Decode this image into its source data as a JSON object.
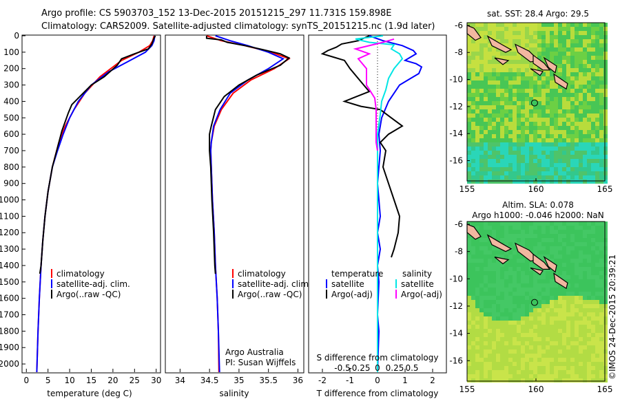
{
  "header": {
    "title_line1": "Argo profile: CS 5903703_152 13-Dec-2015 20151215_297 11.731S 159.898E",
    "title_line2": "Climatology: CARS2009. Satellite-adjusted climatology: synTS_20151215.nc (1.9d later)"
  },
  "colors": {
    "climatology": "#ff0000",
    "satellite": "#0000ff",
    "argo": "#000000",
    "sat_salinity": "#00e5e5",
    "argo_salinity": "#ff00ff"
  },
  "chart_data": [
    {
      "type": "line",
      "id": "temperature",
      "xlabel": "temperature (deg C)",
      "xlim": [
        -1,
        31
      ],
      "xticks": [
        0,
        5,
        10,
        15,
        20,
        25,
        30
      ],
      "ylim": [
        2050,
        0
      ],
      "yticks": [
        0,
        100,
        200,
        300,
        400,
        500,
        600,
        700,
        800,
        900,
        1000,
        1100,
        1200,
        1300,
        1400,
        1500,
        1600,
        1700,
        1800,
        1900,
        2000
      ],
      "series": [
        {
          "name": "climatology",
          "color": "#ff0000",
          "points": [
            [
              29.5,
              0
            ],
            [
              29.2,
              30
            ],
            [
              28.5,
              60
            ],
            [
              26,
              100
            ],
            [
              22,
              150
            ],
            [
              17,
              250
            ],
            [
              13.5,
              350
            ],
            [
              11,
              450
            ],
            [
              9,
              550
            ],
            [
              7.5,
              650
            ],
            [
              6,
              800
            ],
            [
              5,
              950
            ],
            [
              4.3,
              1100
            ],
            [
              3.8,
              1250
            ],
            [
              3.4,
              1400
            ],
            [
              3.0,
              1600
            ],
            [
              2.7,
              1800
            ],
            [
              2.4,
              2050
            ]
          ]
        },
        {
          "name": "satellite-adj. clim.",
          "color": "#0000ff",
          "points": [
            [
              29.7,
              0
            ],
            [
              29.5,
              30
            ],
            [
              29,
              60
            ],
            [
              27.5,
              100
            ],
            [
              24,
              150
            ],
            [
              19,
              220
            ],
            [
              15,
              300
            ],
            [
              12,
              400
            ],
            [
              10,
              500
            ],
            [
              8.5,
              600
            ],
            [
              7.2,
              700
            ],
            [
              6,
              800
            ],
            [
              5,
              950
            ],
            [
              4.3,
              1100
            ],
            [
              3.8,
              1250
            ],
            [
              3.4,
              1400
            ],
            [
              3.0,
              1600
            ],
            [
              2.7,
              1800
            ],
            [
              2.4,
              2050
            ]
          ]
        },
        {
          "name": "Argo(..raw -QC)",
          "color": "#000000",
          "points": [
            [
              29.8,
              0
            ],
            [
              29.4,
              20
            ],
            [
              29.0,
              50
            ],
            [
              28.2,
              80
            ],
            [
              25,
              110
            ],
            [
              22,
              140
            ],
            [
              21,
              180
            ],
            [
              18,
              250
            ],
            [
              15,
              300
            ],
            [
              12,
              380
            ],
            [
              10.5,
              420
            ],
            [
              9.7,
              470
            ],
            [
              8.2,
              580
            ],
            [
              7,
              700
            ],
            [
              6,
              800
            ],
            [
              5,
              950
            ],
            [
              4.3,
              1100
            ],
            [
              3.8,
              1250
            ],
            [
              3.4,
              1400
            ],
            [
              3.1,
              1450
            ]
          ]
        }
      ],
      "legend": {
        "position": "bottom-right",
        "entries": [
          "climatology",
          "satellite-adj. clim.",
          "Argo(..raw -QC)"
        ]
      }
    },
    {
      "type": "line",
      "id": "salinity",
      "xlabel": "salinity",
      "xlim": [
        33.75,
        36.1
      ],
      "xticks": [
        34,
        34.5,
        35,
        35.5,
        36
      ],
      "ylim": [
        2050,
        0
      ],
      "series": [
        {
          "name": "climatology",
          "color": "#ff0000",
          "points": [
            [
              34.45,
              0
            ],
            [
              34.7,
              30
            ],
            [
              35.1,
              60
            ],
            [
              35.55,
              100
            ],
            [
              35.85,
              140
            ],
            [
              35.6,
              200
            ],
            [
              35.2,
              270
            ],
            [
              34.9,
              350
            ],
            [
              34.7,
              450
            ],
            [
              34.58,
              550
            ],
            [
              34.53,
              650
            ],
            [
              34.52,
              700
            ],
            [
              34.53,
              800
            ],
            [
              34.55,
              1000
            ],
            [
              34.58,
              1200
            ],
            [
              34.6,
              1400
            ],
            [
              34.63,
              1600
            ],
            [
              34.65,
              1800
            ],
            [
              34.66,
              2050
            ]
          ]
        },
        {
          "name": "satellite-adj. clim.",
          "color": "#0000ff",
          "points": [
            [
              34.6,
              0
            ],
            [
              34.85,
              30
            ],
            [
              35.15,
              60
            ],
            [
              35.5,
              100
            ],
            [
              35.75,
              140
            ],
            [
              35.5,
              200
            ],
            [
              35.15,
              270
            ],
            [
              34.85,
              350
            ],
            [
              34.68,
              450
            ],
            [
              34.57,
              550
            ],
            [
              34.53,
              650
            ],
            [
              34.52,
              700
            ],
            [
              34.53,
              800
            ],
            [
              34.55,
              1000
            ],
            [
              34.58,
              1200
            ],
            [
              34.6,
              1400
            ],
            [
              34.63,
              1600
            ],
            [
              34.65,
              1800
            ],
            [
              34.67,
              2050
            ]
          ]
        },
        {
          "name": "Argo(..raw -QC)",
          "color": "#000000",
          "points": [
            [
              34.45,
              0
            ],
            [
              34.45,
              15
            ],
            [
              34.7,
              25
            ],
            [
              34.8,
              40
            ],
            [
              35.1,
              60
            ],
            [
              35.35,
              80
            ],
            [
              35.7,
              110
            ],
            [
              35.85,
              135
            ],
            [
              35.7,
              180
            ],
            [
              35.3,
              240
            ],
            [
              35.0,
              300
            ],
            [
              34.75,
              370
            ],
            [
              34.6,
              450
            ],
            [
              34.53,
              550
            ],
            [
              34.5,
              600
            ],
            [
              34.5,
              700
            ],
            [
              34.52,
              800
            ],
            [
              34.54,
              1000
            ],
            [
              34.57,
              1200
            ],
            [
              34.59,
              1400
            ],
            [
              34.6,
              1450
            ]
          ]
        }
      ],
      "legend": {
        "position": "bottom-right",
        "entries": [
          "climatology",
          "satellite-adj. clim.",
          "Argo(..raw -QC)"
        ]
      },
      "annotation": [
        "Argo Australia",
        "PI: Susan Wijffels"
      ]
    },
    {
      "type": "line",
      "id": "difference",
      "xlabel": "T difference from climatology",
      "xlabel_top": "S difference from climatology",
      "xlim": [
        -2.5,
        2.5
      ],
      "xticks": [
        -2,
        -1,
        0,
        1,
        2
      ],
      "top_ticks": [
        "-0.5",
        "-0.25",
        "0",
        "0.25",
        "0.5"
      ],
      "series": [
        {
          "name": "temperature satellite",
          "color": "#0000ff",
          "points": [
            [
              -0.3,
              0
            ],
            [
              0.2,
              30
            ],
            [
              0.9,
              60
            ],
            [
              1.3,
              90
            ],
            [
              1.4,
              110
            ],
            [
              1.2,
              130
            ],
            [
              1.0,
              150
            ],
            [
              1.4,
              170
            ],
            [
              1.6,
              190
            ],
            [
              1.5,
              230
            ],
            [
              1.2,
              260
            ],
            [
              0.8,
              300
            ],
            [
              0.4,
              400
            ],
            [
              0.15,
              500
            ],
            [
              0.05,
              600
            ],
            [
              0.1,
              700
            ],
            [
              0.05,
              800
            ],
            [
              0.0,
              900
            ],
            [
              0.05,
              1000
            ],
            [
              0.1,
              1100
            ],
            [
              0.0,
              1200
            ],
            [
              0.1,
              1300
            ],
            [
              0.0,
              1400
            ],
            [
              0.05,
              1500
            ],
            [
              0.0,
              1700
            ],
            [
              0.05,
              1800
            ],
            [
              0.0,
              2050
            ]
          ]
        },
        {
          "name": "temperature Argo(-adj)",
          "color": "#000000",
          "points": [
            [
              -0.3,
              0
            ],
            [
              -0.7,
              30
            ],
            [
              -1.3,
              50
            ],
            [
              -1.5,
              70
            ],
            [
              -1.8,
              90
            ],
            [
              -2.0,
              110
            ],
            [
              -1.6,
              130
            ],
            [
              -1.2,
              150
            ],
            [
              -1.0,
              200
            ],
            [
              -0.5,
              300
            ],
            [
              -0.3,
              340
            ],
            [
              -0.9,
              380
            ],
            [
              -1.2,
              400
            ],
            [
              -0.6,
              430
            ],
            [
              0.1,
              450
            ],
            [
              0.5,
              500
            ],
            [
              0.9,
              550
            ],
            [
              0.4,
              600
            ],
            [
              0.1,
              650
            ],
            [
              0.3,
              700
            ],
            [
              0.2,
              800
            ],
            [
              0.4,
              900
            ],
            [
              0.6,
              1000
            ],
            [
              0.8,
              1100
            ],
            [
              0.75,
              1200
            ],
            [
              0.6,
              1300
            ],
            [
              0.5,
              1350
            ]
          ]
        },
        {
          "name": "salinity satellite",
          "color": "#00e5e5",
          "points": [
            [
              0.2,
              0
            ],
            [
              -0.8,
              20
            ],
            [
              -0.3,
              40
            ],
            [
              0.6,
              55
            ],
            [
              0.5,
              80
            ],
            [
              0.8,
              110
            ],
            [
              0.9,
              140
            ],
            [
              0.6,
              200
            ],
            [
              0.4,
              260
            ],
            [
              0.3,
              330
            ],
            [
              0.15,
              400
            ],
            [
              0.1,
              480
            ],
            [
              0.0,
              600
            ],
            [
              0.0,
              2050
            ]
          ]
        },
        {
          "name": "salinity Argo(-adj)",
          "color": "#ff00ff",
          "points": [
            [
              0.6,
              20
            ],
            [
              0.2,
              40
            ],
            [
              -0.8,
              80
            ],
            [
              -0.3,
              110
            ],
            [
              -0.7,
              140
            ],
            [
              -0.4,
              200
            ],
            [
              -0.4,
              300
            ],
            [
              -0.1,
              380
            ],
            [
              -0.05,
              450
            ],
            [
              -0.05,
              650
            ],
            [
              0.0,
              700
            ]
          ]
        }
      ],
      "legend": {
        "position": "bottom-center",
        "temperature_title": "temperature",
        "salinity_title": "salinity",
        "entries": [
          "satellite",
          "Argo(-adj)",
          "satellite",
          "Argo(-adj)"
        ]
      }
    },
    {
      "type": "heatmap",
      "id": "sst_map",
      "title": "sat. SST: 28.4  Argo: 29.5",
      "xticks": [
        "155",
        "160",
        "165"
      ],
      "yticks": [
        "-6",
        "-8",
        "-10",
        "-12",
        "-14",
        "-16"
      ],
      "xlim": [
        155,
        165
      ],
      "ylim": [
        -17.5,
        -5.8
      ],
      "float_position": [
        159.898,
        -11.731
      ]
    },
    {
      "type": "heatmap",
      "id": "sla_map",
      "title_line1": "Altim. SLA: 0.078",
      "title_line2": "Argo h1000: -0.046 h2000: NaN",
      "xticks": [
        "155",
        "160",
        "165"
      ],
      "yticks": [
        "-6",
        "-8",
        "-10",
        "-12",
        "-14",
        "-16"
      ],
      "xlim": [
        155,
        165
      ],
      "ylim": [
        -17.5,
        -5.8
      ],
      "float_position": [
        159.898,
        -11.731
      ]
    }
  ],
  "watermark": "©IMOS 24-Dec-2015 20:39:21"
}
